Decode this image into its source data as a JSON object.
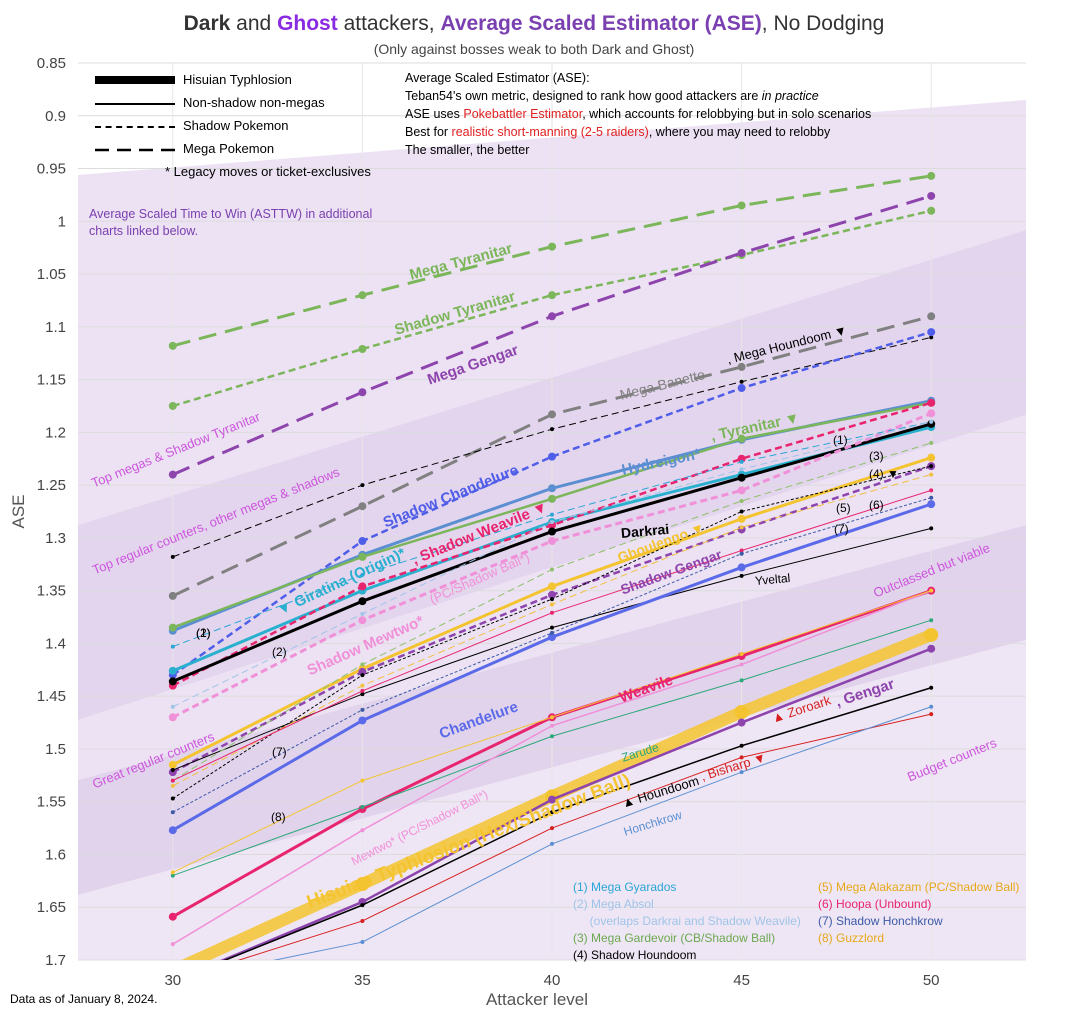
{
  "title": {
    "part1": "Dark",
    "part2": " and ",
    "part3": "Ghost",
    "part4": " attackers, ",
    "part5": "Average Scaled Estimator (ASE)",
    "part6": ", No Dodging"
  },
  "subtitle": "(Only against bosses weak to both Dark and Ghost)",
  "footnote": "Data as of January 8, 2024.",
  "legend": {
    "items": [
      {
        "label": "Hisuian Typhlosion",
        "style": "thick"
      },
      {
        "label": "Non-shadow non-megas",
        "style": "solid"
      },
      {
        "label": "Shadow Pokemon",
        "style": "dotted"
      },
      {
        "label": "Mega Pokemon",
        "style": "dashed"
      }
    ],
    "legacy": "*   Legacy moves or ticket-exclusives"
  },
  "ase_info": {
    "line1": "Average Scaled Estimator (ASE):",
    "line2a": "Teban54's own metric, designed to rank how good attackers are ",
    "line2b": "in practice",
    "line3a": "ASE uses ",
    "line3b": "Pokebattler Estimator",
    "line3c": ", which accounts for relobbying but in solo scenarios",
    "line4a": "Best for ",
    "line4b": "realistic short-manning (2-5 raiders)",
    "line4c": ", where you may need to relobby",
    "line5": "The smaller, the better"
  },
  "note": "Average Scaled Time to Win (ASTTW) in additional charts linked below.",
  "numbered_legend": {
    "left": [
      {
        "text": "(1) Mega Gyarados",
        "color": "#2aa6d6"
      },
      {
        "text": "(2) Mega Absol",
        "color": "#9fc4e8"
      },
      {
        "text": "     (overlaps Darkrai and Shadow Weavile)",
        "color": "#9fc4e8"
      },
      {
        "text": "(3) Mega Gardevoir (CB/Shadow Ball)",
        "color": "#6aa84f"
      },
      {
        "text": "(4) Shadow Houndoom",
        "color": "#000000"
      }
    ],
    "right": [
      {
        "text": "(5) Mega Alakazam (PC/Shadow Ball)",
        "color": "#e6a817"
      },
      {
        "text": "(6) Hoopa (Unbound)",
        "color": "#e8246e"
      },
      {
        "text": "(7) Shadow Honchkrow",
        "color": "#3c5aa6"
      },
      {
        "text": "(8) Guzzlord",
        "color": "#e6a817"
      }
    ]
  },
  "tiers": [
    "Top megas & Shadow Tyranitar",
    "Top regular counters, other megas & shadows",
    "Great regular counters",
    "Outclassed but viable",
    "Budget counters"
  ],
  "chart_data": {
    "type": "line",
    "xlabel": "Attacker level",
    "ylabel": "ASE",
    "x": [
      30,
      35,
      40,
      45,
      50
    ],
    "xlim": [
      27.5,
      52.5
    ],
    "ylim": [
      0.85,
      1.7
    ],
    "y_inverted": true,
    "yticks": [
      "0.85",
      "0.9",
      "0.95",
      "1",
      "1.05",
      "1.1",
      "1.15",
      "1.2",
      "1.25",
      "1.3",
      "1.35",
      "1.4",
      "1.45",
      "1.5",
      "1.55",
      "1.6",
      "1.65",
      "1.7"
    ],
    "xticks": [
      "30",
      "35",
      "40",
      "45",
      "50"
    ],
    "series": [
      {
        "name": "Mega Tyranitar",
        "values": [
          1.118,
          1.07,
          1.024,
          0.985,
          0.957
        ],
        "color": "#7cb65a",
        "style": "mega",
        "w": 3
      },
      {
        "name": "Shadow Tyranitar",
        "values": [
          1.175,
          1.121,
          1.07,
          1.032,
          0.99
        ],
        "color": "#7cb65a",
        "style": "shadow",
        "w": 2.5
      },
      {
        "name": "Mega Gengar",
        "values": [
          1.24,
          1.162,
          1.09,
          1.03,
          0.976
        ],
        "color": "#8e44ad",
        "style": "mega",
        "w": 3
      },
      {
        "name": "Mega Banette",
        "values": [
          1.355,
          1.27,
          1.183,
          1.138,
          1.09
        ],
        "color": "#808080",
        "style": "mega",
        "w": 3
      },
      {
        "name": "Mega Houndoom",
        "values": [
          1.318,
          1.25,
          1.197,
          1.152,
          1.11
        ],
        "color": "#000000",
        "style": "mega",
        "w": 1
      },
      {
        "name": "Shadow Chandelure",
        "values": [
          1.43,
          1.303,
          1.223,
          1.158,
          1.105
        ],
        "color": "#4f5ee8",
        "style": "shadow",
        "w": 2.5
      },
      {
        "name": "Hydreigon*",
        "values": [
          1.388,
          1.316,
          1.253,
          1.207,
          1.17
        ],
        "color": "#5b8fd1",
        "style": "solid",
        "w": 3
      },
      {
        "name": "Tyranitar",
        "values": [
          1.385,
          1.318,
          1.263,
          1.206,
          1.172
        ],
        "color": "#7cb65a",
        "style": "solid",
        "w": 2.5
      },
      {
        "name": "Giratina (Origin)*",
        "values": [
          1.426,
          1.35,
          1.285,
          1.24,
          1.195
        ],
        "color": "#2ab0cf",
        "style": "solid",
        "w": 3
      },
      {
        "name": "Shadow Weavile",
        "values": [
          1.44,
          1.346,
          1.288,
          1.225,
          1.172
        ],
        "color": "#e8246e",
        "style": "shadow",
        "w": 2.5
      },
      {
        "name": "Darkrai",
        "values": [
          1.436,
          1.36,
          1.294,
          1.243,
          1.192
        ],
        "color": "#000000",
        "style": "solid",
        "w": 3
      },
      {
        "name": "Ghoulengo",
        "values": [
          1.515,
          1.424,
          1.346,
          1.282,
          1.224
        ],
        "color": "#f4c430",
        "style": "solid",
        "w": 3
      },
      {
        "name": "Shadow Mewtwo* (PC/Shadow Ball*)",
        "values": [
          1.47,
          1.378,
          1.303,
          1.255,
          1.182
        ],
        "color": "#f090d8",
        "style": "shadow",
        "w": 3
      },
      {
        "name": "Shadow Gengar",
        "values": [
          1.522,
          1.427,
          1.354,
          1.292,
          1.232
        ],
        "color": "#8e44ad",
        "style": "shadow",
        "w": 2.5
      },
      {
        "name": "Yveltal",
        "values": [
          1.52,
          1.448,
          1.385,
          1.336,
          1.291
        ],
        "color": "#000000",
        "style": "solid",
        "w": 1
      },
      {
        "name": "Chandelure",
        "values": [
          1.577,
          1.473,
          1.394,
          1.328,
          1.268
        ],
        "color": "#5b6ae8",
        "style": "solid",
        "w": 3
      },
      {
        "name": "Weavile",
        "values": [
          1.659,
          1.557,
          1.47,
          1.412,
          1.35
        ],
        "color": "#e8246e",
        "style": "solid",
        "w": 3
      },
      {
        "name": "Zarude",
        "values": [
          1.62,
          1.555,
          1.488,
          1.435,
          1.378
        ],
        "color": "#2ea87a",
        "style": "solid",
        "w": 1
      },
      {
        "name": "Mewtwo* (PC/Shadow Ball*)",
        "values": [
          1.685,
          1.577,
          1.478,
          1.42,
          1.35
        ],
        "color": "#f090d8",
        "style": "solid",
        "w": 1.5
      },
      {
        "name": "Hisuian Typhlosion (Hex/Shadow Ball)",
        "values": [
          1.71,
          1.628,
          1.545,
          1.465,
          1.392
        ],
        "color": "#f4c430",
        "style": "thick",
        "w": 12
      },
      {
        "name": "Zoroark",
        "values": [
          1.72,
          1.645,
          1.548,
          1.475,
          1.405
        ],
        "color": "#8e44ad",
        "style": "solid",
        "w": 2.5
      },
      {
        "name": "Houndoom",
        "values": [
          1.72,
          1.648,
          1.56,
          1.497,
          1.442
        ],
        "color": "#000000",
        "style": "solid",
        "w": 1.5
      },
      {
        "name": "Bisharp",
        "values": [
          1.72,
          1.663,
          1.575,
          1.508,
          1.467
        ],
        "color": "#d62020",
        "style": "solid",
        "w": 1
      },
      {
        "name": "Honchkrow",
        "values": [
          1.72,
          1.683,
          1.59,
          1.522,
          1.46
        ],
        "color": "#5b8fd1",
        "style": "solid",
        "w": 1
      },
      {
        "name": "(1) Mega Gyarados",
        "values": [
          1.403,
          1.335,
          1.278,
          1.228,
          1.19
        ],
        "color": "#2aa6d6",
        "style": "mega",
        "w": 1
      },
      {
        "name": "(2) Mega Absol",
        "values": [
          1.46,
          1.372,
          1.285,
          1.235,
          1.19
        ],
        "color": "#9fc4e8",
        "style": "mega",
        "w": 1
      },
      {
        "name": "(3) Mega Gardevoir (CB/Shadow Ball)",
        "values": [
          1.53,
          1.42,
          1.33,
          1.265,
          1.21
        ],
        "color": "#8fc06a",
        "style": "mega",
        "w": 1
      },
      {
        "name": "(4) Shadow Houndoom",
        "values": [
          1.547,
          1.43,
          1.358,
          1.275,
          1.232
        ],
        "color": "#000000",
        "style": "shadow",
        "w": 1
      },
      {
        "name": "(5) Mega Alakazam (PC/Shadow Ball)",
        "values": [
          1.535,
          1.44,
          1.363,
          1.29,
          1.24
        ],
        "color": "#f2c040",
        "style": "mega",
        "w": 1
      },
      {
        "name": "(6) Hoopa (Unbound)",
        "values": [
          1.53,
          1.445,
          1.371,
          1.312,
          1.255
        ],
        "color": "#e8246e",
        "style": "solid",
        "w": 1
      },
      {
        "name": "(7) Shadow Honchkrow",
        "values": [
          1.56,
          1.463,
          1.39,
          1.315,
          1.262
        ],
        "color": "#3c5aa6",
        "style": "shadow",
        "w": 1
      },
      {
        "name": "(8) Guzzlord",
        "values": [
          1.617,
          1.53,
          1.47,
          1.41,
          1.35
        ],
        "color": "#f4c430",
        "style": "solid",
        "w": 1
      }
    ],
    "labels": [
      {
        "text": "Mega Tyranitar",
        "color": "#7cb65a"
      },
      {
        "text": "Shadow Tyranitar",
        "color": "#7cb65a"
      },
      {
        "text": "Mega Gengar",
        "color": "#8e44ad"
      },
      {
        "text": "Mega Banette",
        "color": "#808080"
      },
      {
        "text": ", Mega Houndoom ▼",
        "color": "#000000"
      },
      {
        "text": "Hydreigon*",
        "color": "#5b8fd1"
      },
      {
        "text": ", Tyranitar ▼",
        "color": "#7cb65a"
      },
      {
        "text": "Shadow Chandelure",
        "color": "#4f5ee8"
      },
      {
        "text": "▼ Giratina (Origin)*",
        "color": "#2ab0cf"
      },
      {
        "text": ", Shadow Weavile ▼",
        "color": "#e8246e"
      },
      {
        "text": "Darkrai",
        "color": "#000000"
      },
      {
        "text": "Ghoulengo ▼",
        "color": "#f4c430"
      },
      {
        "text": "Shadow Mewtwo*",
        "color": "#f090d8"
      },
      {
        "text": " (PC/Shadow Ball*)",
        "color": "#f090d8"
      },
      {
        "text": "Shadow Gengar",
        "color": "#8e44ad"
      },
      {
        "text": "Yveltal",
        "color": "#000000"
      },
      {
        "text": "Chandelure",
        "color": "#5b6ae8"
      },
      {
        "text": "Weavile",
        "color": "#e8246e"
      },
      {
        "text": "Zarude",
        "color": "#2ea87a"
      },
      {
        "text": "Mewtwo* (PC/Shadow Ball*)",
        "color": "#f090d8"
      },
      {
        "text": "Hisuian Typhlosion (Hex/Shadow Ball)",
        "color": "#f4c430"
      },
      {
        "text": "▲ Zoroark",
        "color": "#d62020"
      },
      {
        "text": ", Gengar",
        "color": "#8e44ad"
      },
      {
        "text": "▲ Houndoom",
        "color": "#000000"
      },
      {
        "text": ", Bisharp ▼",
        "color": "#d62020"
      },
      {
        "text": "Honchkrow",
        "color": "#5b8fd1"
      },
      {
        "text": "(1)",
        "color": "#000000"
      },
      {
        "text": "(2)",
        "color": "#000000"
      },
      {
        "text": "(3)",
        "color": "#000000"
      },
      {
        "text": "(4) ▼",
        "color": "#000000"
      },
      {
        "text": "(5)",
        "color": "#000000"
      },
      {
        "text": "(6)",
        "color": "#000000"
      },
      {
        "text": "(7)",
        "color": "#000000"
      },
      {
        "text": "(8)",
        "color": "#000000"
      },
      {
        "text": "(1)",
        "color": "#000000"
      },
      {
        "text": "(2)",
        "color": "#000000"
      },
      {
        "text": "(7)",
        "color": "#000000"
      }
    ]
  }
}
